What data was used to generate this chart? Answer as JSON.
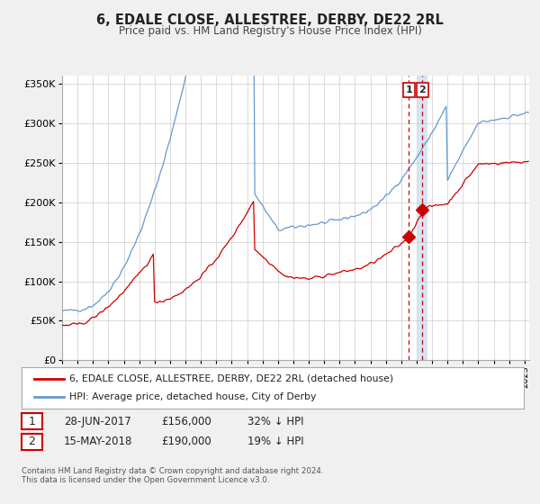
{
  "title": "6, EDALE CLOSE, ALLESTREE, DERBY, DE22 2RL",
  "subtitle": "Price paid vs. HM Land Registry's House Price Index (HPI)",
  "legend_line1": "6, EDALE CLOSE, ALLESTREE, DERBY, DE22 2RL (detached house)",
  "legend_line2": "HPI: Average price, detached house, City of Derby",
  "footnote1": "Contains HM Land Registry data © Crown copyright and database right 2024.",
  "footnote2": "This data is licensed under the Open Government Licence v3.0.",
  "price_color": "#cc0000",
  "hpi_color": "#6699cc",
  "vline_color": "#cc0000",
  "vline2_color": "#aabbdd",
  "marker_color": "#cc0000",
  "annotation_box_color": "#cc0000",
  "ylim": [
    0,
    360000
  ],
  "xlim_start": 1995.0,
  "xlim_end": 2025.3,
  "sale1_date": 2017.49,
  "sale1_price": 156000,
  "sale1_label": "1",
  "sale1_display": "28-JUN-2017",
  "sale1_amount": "£156,000",
  "sale1_pct": "32% ↓ HPI",
  "sale2_date": 2018.37,
  "sale2_price": 190000,
  "sale2_label": "2",
  "sale2_display": "15-MAY-2018",
  "sale2_amount": "£190,000",
  "sale2_pct": "19% ↓ HPI",
  "background_color": "#f0f0f0",
  "plot_bg_color": "#ffffff",
  "grid_color": "#cccccc"
}
